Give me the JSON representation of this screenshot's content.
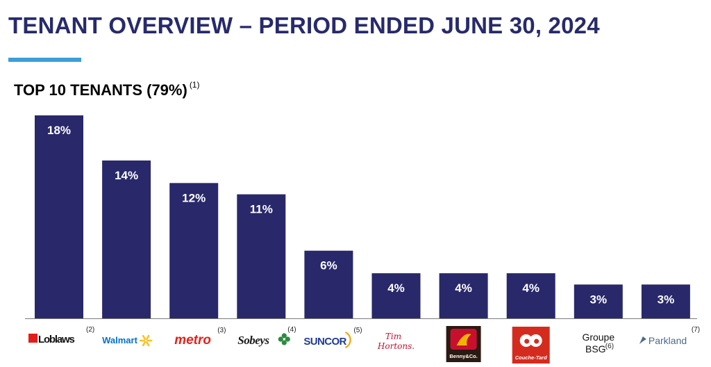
{
  "header": {
    "title": "TENANT OVERVIEW – PERIOD ENDED JUNE 30, 2024",
    "rule_color": "#3a9fd9"
  },
  "chart_data": {
    "type": "bar",
    "title": "TOP 10 TENANTS (79%)",
    "title_footnote": "(1)",
    "categories": [
      "Loblaws",
      "Walmart",
      "metro",
      "Sobeys",
      "SUNCOR",
      "Tim Hortons",
      "Benny&Co.",
      "Couche-Tard",
      "Groupe BSG",
      "Parkland"
    ],
    "footnotes": [
      "(2)",
      "",
      "(3)",
      "(4)",
      "(5)",
      "",
      "",
      "",
      "(6)",
      "(7)"
    ],
    "values": [
      18,
      14,
      12,
      11,
      6,
      4,
      4,
      4,
      3,
      3
    ],
    "labels": [
      "18%",
      "14%",
      "12%",
      "11%",
      "6%",
      "4%",
      "4%",
      "4%",
      "3%",
      "3%"
    ],
    "ylim": [
      0,
      18
    ],
    "bar_color": "#29286b",
    "grid": false,
    "logo_colors": {
      "loblaws": "#e31d1a",
      "walmart": "#0071ce",
      "walmart_spark": "#ffc220",
      "metro": "#e2231a",
      "sobeys": "#1a1a1a",
      "sobeys_leaf": "#2b8a3e",
      "suncor": "#1f3a93",
      "suncor_sun": "#f7a600",
      "tim_hortons": "#c8102e",
      "benny": "#c8102e",
      "couche_tard": "#d52b1e",
      "parkland": "#4a6a8a"
    },
    "logo_icons": [
      "loblaws-logo-icon",
      "walmart-spark-icon",
      "metro-logo-icon",
      "sobeys-leaf-icon",
      "suncor-sun-icon",
      "tim-hortons-logo-icon",
      "benny-rooster-icon",
      "couche-tard-owl-icon",
      "groupe-bsg-text-icon",
      "parkland-flag-icon"
    ]
  }
}
